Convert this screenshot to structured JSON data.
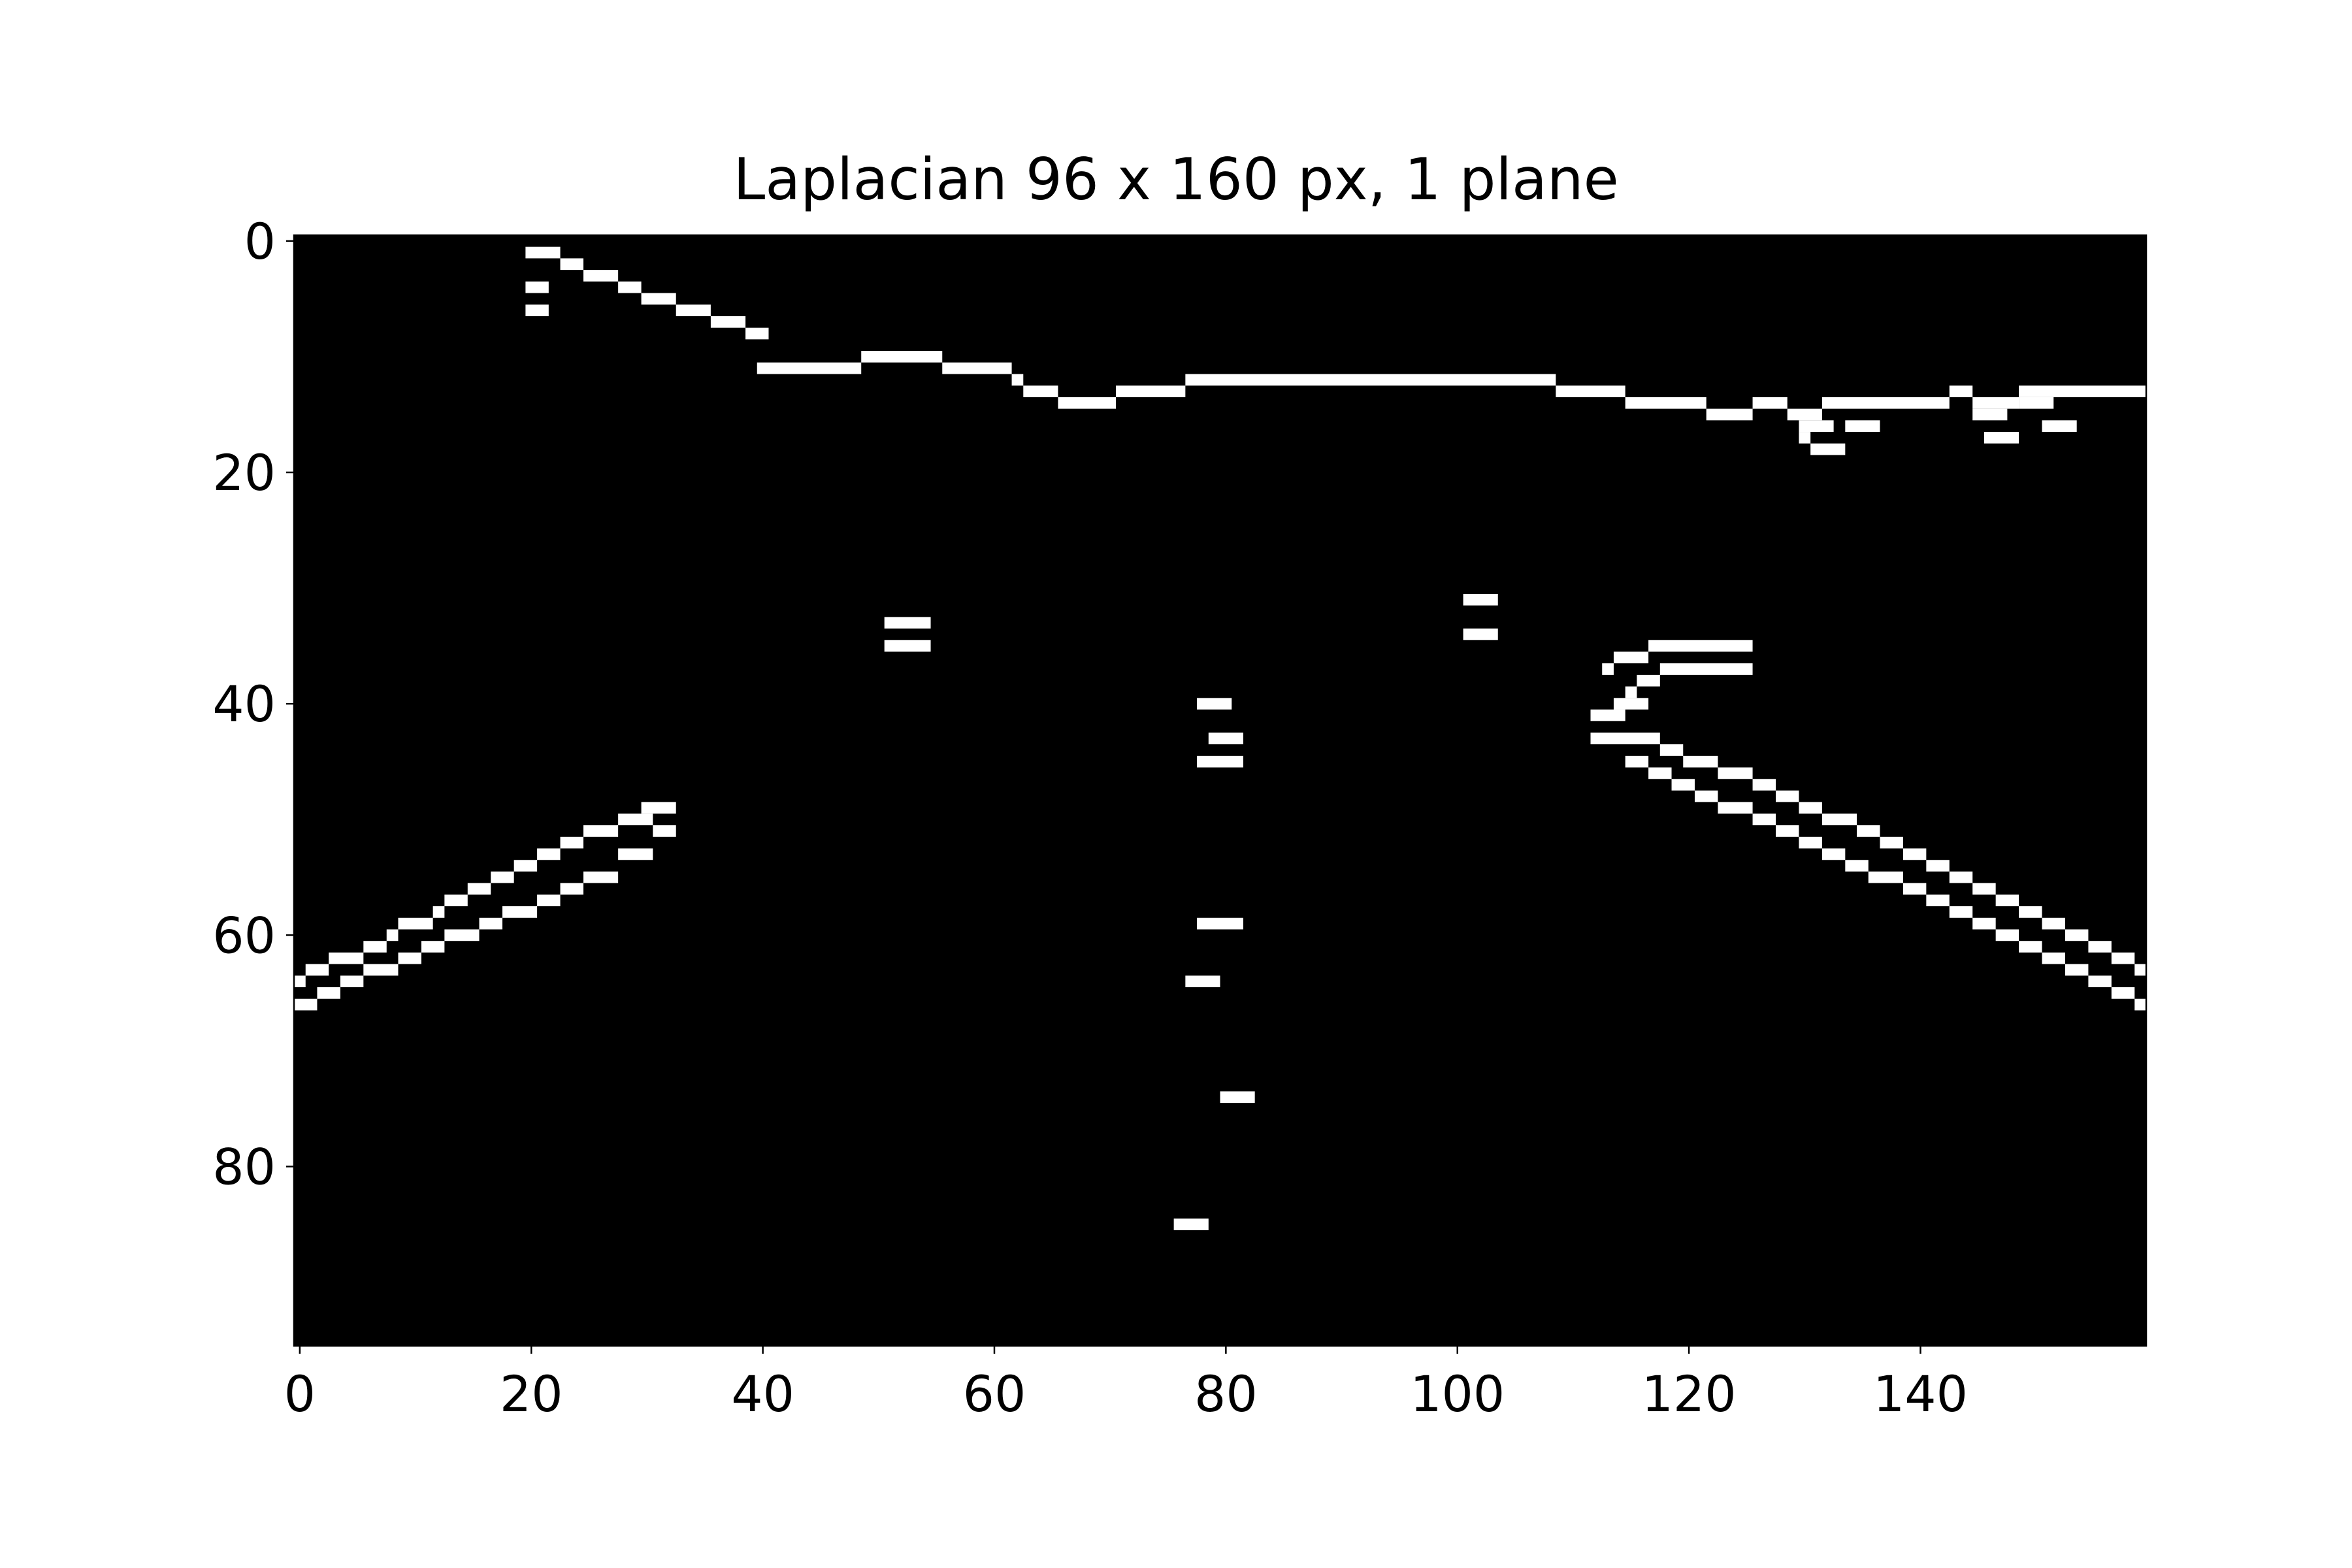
{
  "chart_data": {
    "type": "heatmap",
    "title": "Laplacian 96 x 160 px, 1 plane",
    "xlabel": "",
    "ylabel": "",
    "xlim": [
      -0.5,
      159.5
    ],
    "ylim": [
      95.5,
      -0.5
    ],
    "x_ticks": [
      0,
      20,
      40,
      60,
      80,
      100,
      120,
      140
    ],
    "y_ticks": [
      0,
      20,
      40,
      60,
      80
    ],
    "x_tick_labels": [
      "0",
      "20",
      "40",
      "60",
      "80",
      "100",
      "120",
      "140"
    ],
    "y_tick_labels": [
      "0",
      "20",
      "40",
      "60",
      "80"
    ],
    "grid": false,
    "colormap": [
      "#000000",
      "#ffffff"
    ],
    "background_value": 0,
    "edge_segments": [
      [
        1,
        20,
        23
      ],
      [
        2,
        23,
        25
      ],
      [
        3,
        25,
        28
      ],
      [
        4,
        28,
        30
      ],
      [
        5,
        30,
        33
      ],
      [
        6,
        33,
        36
      ],
      [
        7,
        36,
        39
      ],
      [
        8,
        39,
        41
      ],
      [
        4,
        20,
        22
      ],
      [
        6,
        20,
        22
      ],
      [
        11,
        40,
        49
      ],
      [
        10,
        49,
        56
      ],
      [
        11,
        56,
        62
      ],
      [
        12,
        62,
        63
      ],
      [
        13,
        63,
        66
      ],
      [
        14,
        66,
        71
      ],
      [
        13,
        71,
        77
      ],
      [
        12,
        77,
        109
      ],
      [
        13,
        109,
        115
      ],
      [
        14,
        115,
        122
      ],
      [
        15,
        122,
        126
      ],
      [
        14,
        126,
        129
      ],
      [
        15,
        129,
        132
      ],
      [
        14,
        132,
        143
      ],
      [
        13,
        143,
        145
      ],
      [
        14,
        145,
        149
      ],
      [
        13,
        149,
        160
      ],
      [
        16,
        130,
        133
      ],
      [
        17,
        130,
        131
      ],
      [
        18,
        131,
        134
      ],
      [
        16,
        134,
        137
      ],
      [
        15,
        145,
        148
      ],
      [
        17,
        146,
        149
      ],
      [
        14,
        149,
        152
      ],
      [
        16,
        151,
        154
      ],
      [
        31,
        101,
        104
      ],
      [
        34,
        101,
        104
      ],
      [
        33,
        51,
        55
      ],
      [
        35,
        51,
        55
      ],
      [
        40,
        78,
        81
      ],
      [
        43,
        79,
        82
      ],
      [
        45,
        78,
        82
      ],
      [
        59,
        78,
        82
      ],
      [
        64,
        77,
        80
      ],
      [
        74,
        80,
        83
      ],
      [
        85,
        76,
        79
      ],
      [
        35,
        117,
        126
      ],
      [
        36,
        114,
        117
      ],
      [
        37,
        113,
        114
      ],
      [
        37,
        118,
        126
      ],
      [
        38,
        116,
        118
      ],
      [
        39,
        115,
        116
      ],
      [
        40,
        114,
        117
      ],
      [
        41,
        112,
        115
      ],
      [
        43,
        112,
        118
      ],
      [
        44,
        118,
        120
      ],
      [
        45,
        115,
        117
      ],
      [
        45,
        120,
        123
      ],
      [
        46,
        117,
        119
      ],
      [
        46,
        123,
        126
      ],
      [
        47,
        119,
        121
      ],
      [
        47,
        126,
        128
      ],
      [
        48,
        121,
        123
      ],
      [
        48,
        128,
        130
      ],
      [
        49,
        123,
        126
      ],
      [
        49,
        130,
        132
      ],
      [
        50,
        126,
        128
      ],
      [
        50,
        132,
        135
      ],
      [
        51,
        128,
        130
      ],
      [
        51,
        135,
        137
      ],
      [
        52,
        130,
        132
      ],
      [
        52,
        137,
        139
      ],
      [
        53,
        132,
        134
      ],
      [
        53,
        139,
        141
      ],
      [
        54,
        134,
        136
      ],
      [
        54,
        141,
        143
      ],
      [
        55,
        136,
        139
      ],
      [
        55,
        143,
        145
      ],
      [
        56,
        139,
        141
      ],
      [
        56,
        145,
        147
      ],
      [
        57,
        141,
        143
      ],
      [
        57,
        147,
        149
      ],
      [
        58,
        143,
        145
      ],
      [
        58,
        149,
        151
      ],
      [
        59,
        145,
        147
      ],
      [
        59,
        151,
        153
      ],
      [
        60,
        147,
        149
      ],
      [
        60,
        153,
        155
      ],
      [
        61,
        149,
        151
      ],
      [
        61,
        155,
        157
      ],
      [
        62,
        151,
        153
      ],
      [
        62,
        157,
        159
      ],
      [
        63,
        153,
        155
      ],
      [
        63,
        159,
        160
      ],
      [
        64,
        155,
        157
      ],
      [
        65,
        157,
        159
      ],
      [
        66,
        159,
        160
      ],
      [
        49,
        30,
        33
      ],
      [
        50,
        28,
        31
      ],
      [
        51,
        25,
        28
      ],
      [
        51,
        31,
        33
      ],
      [
        52,
        23,
        25
      ],
      [
        53,
        21,
        23
      ],
      [
        53,
        28,
        31
      ],
      [
        54,
        19,
        21
      ],
      [
        55,
        17,
        19
      ],
      [
        55,
        25,
        28
      ],
      [
        56,
        15,
        17
      ],
      [
        56,
        23,
        25
      ],
      [
        57,
        13,
        15
      ],
      [
        57,
        21,
        23
      ],
      [
        58,
        12,
        13
      ],
      [
        58,
        18,
        21
      ],
      [
        59,
        9,
        12
      ],
      [
        59,
        16,
        18
      ],
      [
        60,
        8,
        9
      ],
      [
        60,
        13,
        16
      ],
      [
        61,
        6,
        8
      ],
      [
        61,
        11,
        13
      ],
      [
        62,
        3,
        6
      ],
      [
        62,
        9,
        11
      ],
      [
        63,
        1,
        3
      ],
      [
        63,
        6,
        9
      ],
      [
        64,
        0,
        1
      ],
      [
        64,
        4,
        6
      ],
      [
        65,
        2,
        4
      ],
      [
        66,
        0,
        2
      ]
    ]
  }
}
